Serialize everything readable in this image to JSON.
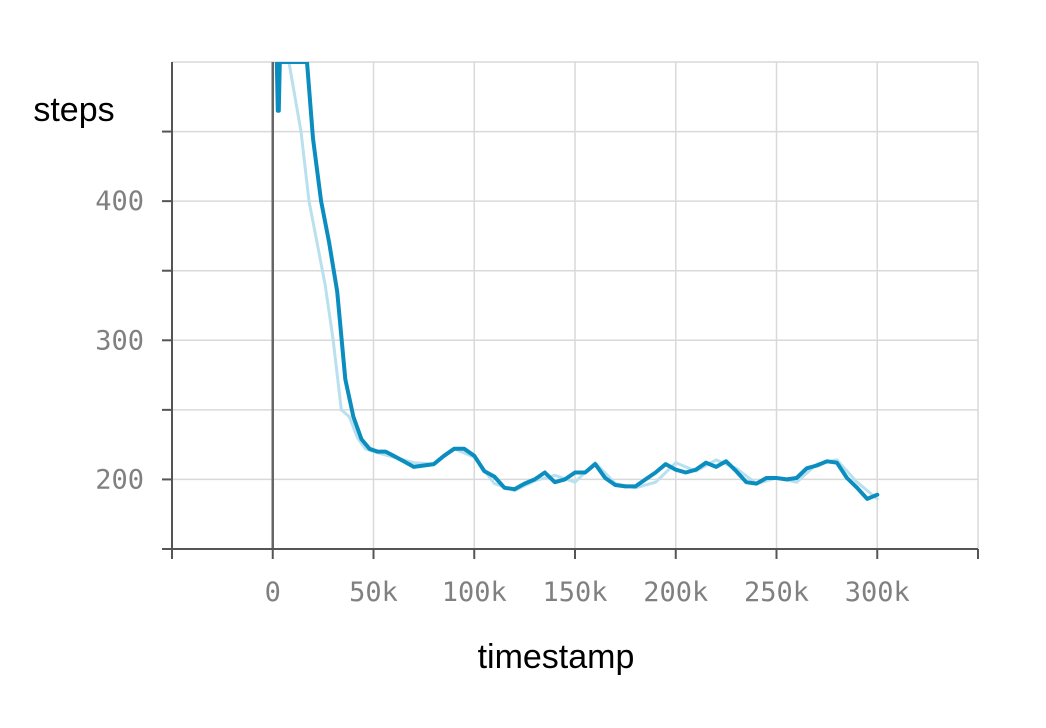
{
  "chart_data": {
    "type": "line",
    "title": "",
    "xlabel": "timestamp",
    "ylabel": "steps",
    "xlim": [
      -50000,
      350000
    ],
    "ylim": [
      150,
      500
    ],
    "grid": true,
    "x_ticks": [
      0,
      50000,
      100000,
      150000,
      200000,
      250000,
      300000
    ],
    "x_tick_labels": [
      "0",
      "50k",
      "100k",
      "150k",
      "200k",
      "250k",
      "300k"
    ],
    "y_ticks": [
      200,
      300,
      400
    ],
    "y_tick_labels": [
      "200",
      "300",
      "400"
    ],
    "colors": {
      "smoothed": "#0b8ebf",
      "raw": "#b9e0ee",
      "grid": "#d9d9d9",
      "axis": "#555555"
    },
    "series": [
      {
        "style": "raw",
        "x": [
          2000,
          8000,
          14000,
          18000,
          22000,
          26000,
          30000,
          34000,
          38000,
          42000,
          46000,
          50000,
          60000,
          70000,
          80000,
          90000,
          100000,
          110000,
          120000,
          130000,
          140000,
          150000,
          160000,
          170000,
          180000,
          190000,
          200000,
          210000,
          220000,
          230000,
          240000,
          250000,
          260000,
          270000,
          280000,
          290000,
          300000
        ],
        "y": [
          500,
          500,
          450,
          400,
          370,
          340,
          300,
          250,
          245,
          230,
          222,
          220,
          216,
          212,
          211,
          222,
          216,
          197,
          192,
          199,
          203,
          198,
          212,
          197,
          194,
          198,
          212,
          206,
          214,
          208,
          197,
          201,
          198,
          211,
          214,
          198,
          186
        ]
      },
      {
        "style": "smoothed",
        "x": [
          2000,
          2500,
          3000,
          3500,
          17000,
          20000,
          24000,
          28000,
          32000,
          36000,
          40000,
          44000,
          48000,
          52000,
          56000,
          60000,
          65000,
          70000,
          75000,
          80000,
          85000,
          90000,
          95000,
          100000,
          105000,
          110000,
          115000,
          120000,
          125000,
          130000,
          135000,
          140000,
          145000,
          150000,
          155000,
          160000,
          165000,
          170000,
          175000,
          180000,
          185000,
          190000,
          195000,
          200000,
          205000,
          210000,
          215000,
          220000,
          225000,
          230000,
          235000,
          240000,
          245000,
          250000,
          255000,
          260000,
          265000,
          270000,
          275000,
          280000,
          285000,
          290000,
          295000,
          300000
        ],
        "y": [
          500,
          465,
          465,
          500,
          500,
          445,
          400,
          370,
          335,
          272,
          245,
          229,
          222,
          220,
          220,
          217,
          213,
          209,
          210,
          211,
          217,
          222,
          222,
          217,
          206,
          202,
          194,
          193,
          197,
          200,
          205,
          198,
          200,
          205,
          205,
          211,
          201,
          196,
          195,
          195,
          200,
          205,
          211,
          207,
          205,
          207,
          212,
          209,
          213,
          206,
          198,
          197,
          201,
          201,
          200,
          201,
          208,
          210,
          213,
          212,
          201,
          194,
          186,
          189
        ]
      }
    ]
  }
}
